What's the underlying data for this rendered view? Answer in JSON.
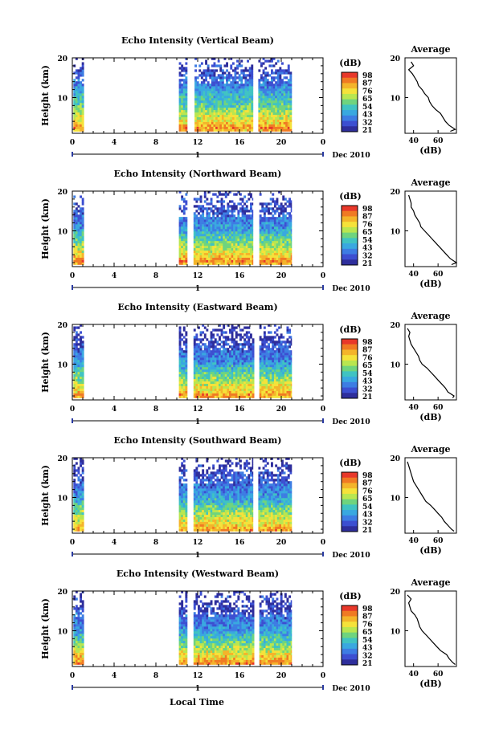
{
  "figure": {
    "x_axis_label": "Local Time",
    "date_label": "Dec 2010",
    "day_marker": "1"
  },
  "colorbar": {
    "unit": "(dB)",
    "tick_labels": [
      "98",
      "87",
      "76",
      "65",
      "54",
      "43",
      "32",
      "21"
    ],
    "colors": [
      "#e8382a",
      "#f07a23",
      "#f4b42a",
      "#f5e23a",
      "#b9e650",
      "#6fd47e",
      "#40c3c2",
      "#39a8e0",
      "#3d7de3",
      "#3c4fd1",
      "#2e2e9c"
    ]
  },
  "chart_data": [
    {
      "type": "heatmap",
      "title": "Echo Intensity (Vertical Beam)",
      "xlabel": "Local Time",
      "ylabel": "Height (km)",
      "x_ticks": [
        "0",
        "4",
        "8",
        "12",
        "16",
        "20",
        "0"
      ],
      "y_ticks": [
        "20",
        "10"
      ],
      "xlim": [
        0,
        24
      ],
      "ylim": [
        1,
        20
      ],
      "data_segments_hours": [
        [
          0.1,
          1.1
        ],
        [
          10.2,
          11.0
        ],
        [
          11.7,
          17.3
        ],
        [
          17.8,
          21.0
        ]
      ],
      "color_range_db": [
        21,
        98
      ],
      "average_profile": {
        "title": "Average",
        "xlabel": "(dB)",
        "x_ticks": [
          "40",
          "60"
        ],
        "y_ticks": [
          "20",
          "10"
        ],
        "xlim": [
          33,
          75
        ],
        "ylim": [
          1,
          20
        ],
        "height_km": [
          1.5,
          2,
          3,
          4,
          5,
          6,
          7,
          8,
          9,
          10,
          11,
          12,
          13,
          14,
          15,
          16,
          17,
          18,
          19
        ],
        "db": [
          70,
          74,
          69,
          66,
          64,
          62,
          58,
          55,
          53,
          52,
          49,
          47,
          44,
          43,
          41,
          39,
          36,
          40,
          38
        ]
      }
    },
    {
      "type": "heatmap",
      "title": "Echo Intensity (Northward Beam)",
      "xlabel": "Local Time",
      "ylabel": "Height (km)",
      "x_ticks": [
        "0",
        "4",
        "8",
        "12",
        "16",
        "20",
        "0"
      ],
      "y_ticks": [
        "20",
        "10"
      ],
      "xlim": [
        0,
        24
      ],
      "ylim": [
        1,
        20
      ],
      "data_segments_hours": [
        [
          0.1,
          1.1
        ],
        [
          10.2,
          11.0
        ],
        [
          11.6,
          17.3
        ],
        [
          17.9,
          21.0
        ]
      ],
      "color_range_db": [
        21,
        98
      ],
      "average_profile": {
        "title": "Average",
        "xlabel": "(dB)",
        "x_ticks": [
          "40",
          "60"
        ],
        "y_ticks": [
          "20",
          "10"
        ],
        "xlim": [
          33,
          75
        ],
        "ylim": [
          1,
          20
        ],
        "height_km": [
          1.5,
          2,
          3,
          4,
          5,
          6,
          7,
          8,
          9,
          10,
          11,
          12,
          13,
          14,
          15,
          16,
          17,
          18,
          19
        ],
        "db": [
          71,
          75,
          70,
          67,
          64,
          61,
          58,
          55,
          52,
          49,
          46,
          45,
          43,
          41,
          40,
          38,
          38,
          37,
          36
        ]
      }
    },
    {
      "type": "heatmap",
      "title": "Echo Intensity (Eastward Beam)",
      "xlabel": "Local Time",
      "ylabel": "Height (km)",
      "x_ticks": [
        "0",
        "4",
        "8",
        "12",
        "16",
        "20",
        "0"
      ],
      "y_ticks": [
        "20",
        "10"
      ],
      "xlim": [
        0,
        24
      ],
      "ylim": [
        1,
        20
      ],
      "data_segments_hours": [
        [
          0.1,
          1.1
        ],
        [
          10.2,
          11.0
        ],
        [
          11.6,
          17.4
        ],
        [
          17.9,
          21.0
        ]
      ],
      "color_range_db": [
        21,
        98
      ],
      "average_profile": {
        "title": "Average",
        "xlabel": "(dB)",
        "x_ticks": [
          "40",
          "60"
        ],
        "y_ticks": [
          "20",
          "10"
        ],
        "xlim": [
          33,
          75
        ],
        "ylim": [
          1,
          20
        ],
        "height_km": [
          1.5,
          2,
          3,
          4,
          5,
          6,
          7,
          8,
          9,
          10,
          11,
          12,
          13,
          14,
          15,
          16,
          17,
          18,
          19
        ],
        "db": [
          72,
          73,
          68,
          66,
          63,
          60,
          57,
          54,
          51,
          47,
          45,
          44,
          42,
          40,
          38,
          37,
          36,
          37,
          35
        ]
      }
    },
    {
      "type": "heatmap",
      "title": "Echo Intensity (Southward Beam)",
      "xlabel": "Local Time",
      "ylabel": "Height (km)",
      "x_ticks": [
        "0",
        "4",
        "8",
        "12",
        "16",
        "20",
        "0"
      ],
      "y_ticks": [
        "20",
        "10"
      ],
      "xlim": [
        0,
        24
      ],
      "ylim": [
        1,
        20
      ],
      "data_segments_hours": [
        [
          0.1,
          1.1
        ],
        [
          10.2,
          11.0
        ],
        [
          11.6,
          17.3
        ],
        [
          17.8,
          21.0
        ]
      ],
      "color_range_db": [
        21,
        98
      ],
      "average_profile": {
        "title": "Average",
        "xlabel": "(dB)",
        "x_ticks": [
          "40",
          "60"
        ],
        "y_ticks": [
          "20",
          "10"
        ],
        "xlim": [
          33,
          75
        ],
        "ylim": [
          1,
          20
        ],
        "height_km": [
          1.5,
          2,
          3,
          4,
          5,
          6,
          7,
          8,
          9,
          10,
          11,
          12,
          13,
          14,
          15,
          16,
          17,
          18,
          19
        ],
        "db": [
          73,
          71,
          68,
          65,
          63,
          60,
          57,
          54,
          50,
          48,
          46,
          44,
          42,
          40,
          39,
          38,
          37,
          36,
          35
        ]
      }
    },
    {
      "type": "heatmap",
      "title": "Echo Intensity (Westward Beam)",
      "xlabel": "Local Time",
      "ylabel": "Height (km)",
      "x_ticks": [
        "0",
        "4",
        "8",
        "12",
        "16",
        "20",
        "0"
      ],
      "y_ticks": [
        "20",
        "10"
      ],
      "xlim": [
        0,
        24
      ],
      "ylim": [
        1,
        20
      ],
      "data_segments_hours": [
        [
          0.1,
          1.1
        ],
        [
          10.2,
          11.0
        ],
        [
          11.6,
          17.4
        ],
        [
          17.9,
          21.0
        ]
      ],
      "color_range_db": [
        21,
        98
      ],
      "average_profile": {
        "title": "Average",
        "xlabel": "(dB)",
        "x_ticks": [
          "40",
          "60"
        ],
        "y_ticks": [
          "20",
          "10"
        ],
        "xlim": [
          33,
          75
        ],
        "ylim": [
          1,
          20
        ],
        "height_km": [
          1.5,
          2,
          3,
          4,
          5,
          6,
          7,
          8,
          9,
          10,
          11,
          12,
          13,
          14,
          15,
          16,
          17,
          18,
          19
        ],
        "db": [
          74,
          72,
          69,
          67,
          62,
          59,
          56,
          53,
          50,
          47,
          45,
          44,
          43,
          41,
          38,
          37,
          36,
          38,
          35
        ]
      }
    }
  ]
}
